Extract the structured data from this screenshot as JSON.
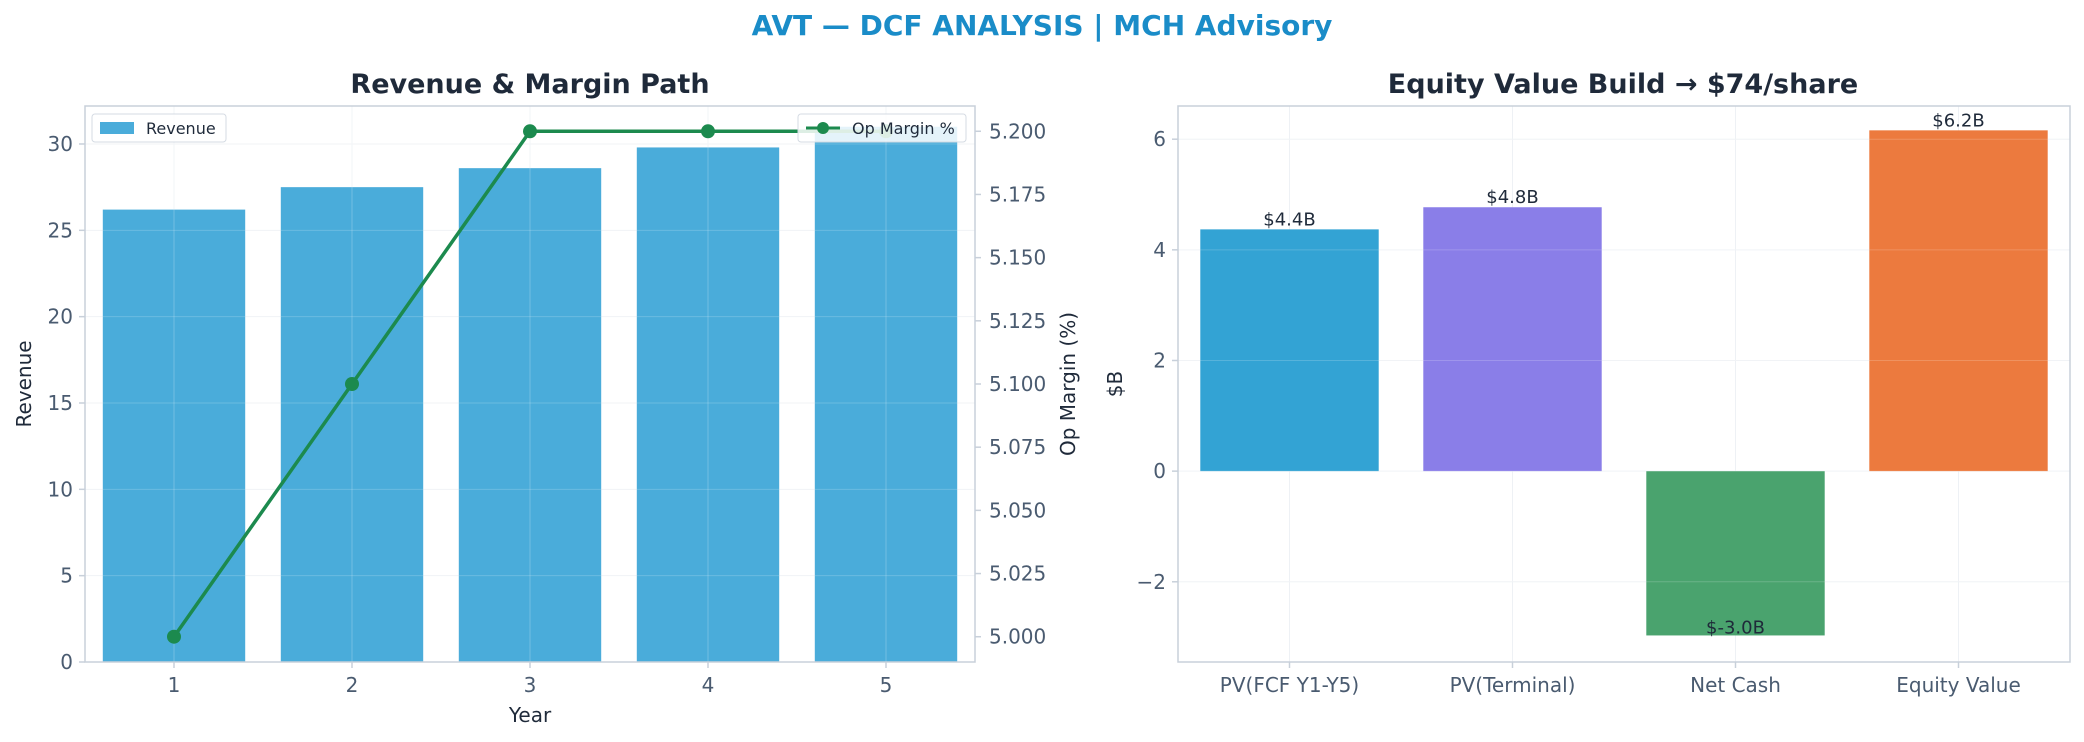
{
  "suptitle": "AVT — DCF ANALYSIS | MCH Advisory",
  "colors": {
    "revenue_bar": "#4aacda",
    "margin_line": "#1c8a4e",
    "title": "#1a8cc8",
    "grid": "#eef1f5",
    "axis": "#c8d0da"
  },
  "chart_data": [
    {
      "type": "bar",
      "title": "Revenue & Margin Path",
      "xlabel": "Year",
      "ylabel": "Revenue",
      "y2label": "Op Margin (%)",
      "categories": [
        "1",
        "2",
        "3",
        "4",
        "5"
      ],
      "series": [
        {
          "name": "Revenue",
          "type": "bar",
          "axis": "left",
          "values": [
            26.2,
            27.5,
            28.6,
            29.8,
            31.0
          ]
        },
        {
          "name": "Op Margin %",
          "type": "line",
          "axis": "right",
          "values": [
            5.0,
            5.1,
            5.2,
            5.2,
            5.2
          ]
        }
      ],
      "ylim": [
        0,
        32.2
      ],
      "yticks": [
        0,
        5,
        10,
        15,
        20,
        25,
        30
      ],
      "y2lim": [
        4.99,
        5.21
      ],
      "y2ticks": [
        5.0,
        5.025,
        5.05,
        5.075,
        5.1,
        5.125,
        5.15,
        5.175,
        5.2
      ],
      "y2tick_labels": [
        "5.000",
        "5.025",
        "5.050",
        "5.075",
        "5.100",
        "5.125",
        "5.150",
        "5.175",
        "5.200"
      ],
      "legend": [
        {
          "label": "Revenue",
          "placement": "top-left"
        },
        {
          "label": "Op Margin %",
          "placement": "top-right"
        }
      ],
      "grid": true
    },
    {
      "type": "bar",
      "title": "Equity Value Build → $74/share",
      "xlabel": "",
      "ylabel": "$B",
      "categories": [
        "PV(FCF Y1-Y5)",
        "PV(Terminal)",
        "Net Cash",
        "Equity Value"
      ],
      "values": [
        4.37,
        4.77,
        -2.97,
        6.16
      ],
      "data_labels": [
        "$4.4B",
        "$4.8B",
        "$-3.0B",
        "$6.2B"
      ],
      "bar_colors": [
        "#33a3d4",
        "#8a7ee8",
        "#4aa36e",
        "#ec7a3e"
      ],
      "ylim": [
        -3.45,
        6.6
      ],
      "yticks": [
        -2,
        0,
        2,
        4,
        6
      ],
      "ytick_labels": [
        "−2",
        "0",
        "2",
        "4",
        "6"
      ],
      "grid": true
    }
  ]
}
